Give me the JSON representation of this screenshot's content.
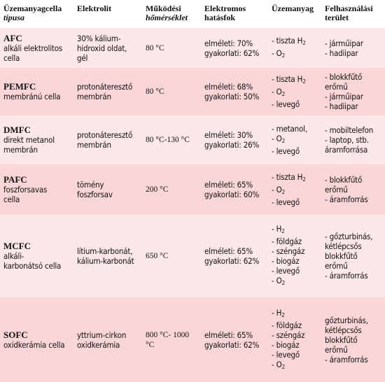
{
  "headers": {
    "type": [
      "Üzemanyagcella",
      "típusa"
    ],
    "electrolyte": [
      "Elektrolit"
    ],
    "temperature": [
      "Működési",
      "hőmérséklet"
    ],
    "efficiency": [
      "Elektromos",
      "hatásfok"
    ],
    "fuel": [
      "Üzemanyag"
    ],
    "application": [
      "Felhasználási",
      "terület"
    ]
  },
  "rows": [
    {
      "name": "AFC",
      "subtitle": [
        "alkáli elektrolitos",
        "cella"
      ],
      "electrolyte": [
        "30% kálium-",
        "hidroxid oldat,",
        "gél"
      ],
      "temperature": [
        "80 °C"
      ],
      "efficiency": [
        "elméleti: 70%",
        "gyakorlati: 62%"
      ],
      "fuel": [
        "- tiszta H2",
        "- O2"
      ],
      "application": [
        "- járműipar",
        "- hadiipar"
      ]
    },
    {
      "name": "PEMFC",
      "subtitle": [
        "membránú cella"
      ],
      "electrolyte": [
        "protonáteresztő",
        "membrán"
      ],
      "temperature": [
        "80 °C"
      ],
      "efficiency": [
        "elméleti: 68%",
        "gyakorlati: 50%"
      ],
      "fuel": [
        "- tiszta H2",
        "- O2",
        "- levegő"
      ],
      "application": [
        "- blokkfűtő",
        "  erőmű",
        "- járműipar",
        "- hadiipar"
      ]
    },
    {
      "name": "DMFC",
      "subtitle": [
        "direkt metanol",
        "membrán"
      ],
      "electrolyte": [
        "protonáteresztő",
        "membrán"
      ],
      "temperature": [
        "80 °C-130 °C"
      ],
      "efficiency": [
        "elméleti: 30%",
        "gyakorlati: 26%"
      ],
      "fuel": [
        "- metanol,",
        "- O2",
        "- levegő"
      ],
      "application": [
        "- mobiltelefon",
        "- laptop, stb.",
        "  áramforrása"
      ]
    },
    {
      "name": "PAFC",
      "subtitle": [
        "foszforsavas",
        "cella"
      ],
      "electrolyte": [
        "tömény",
        "foszforsav"
      ],
      "temperature": [
        "200 °C"
      ],
      "efficiency": [
        "elméleti: 65%",
        "gyakorlati: 60%"
      ],
      "fuel": [
        "- tiszta H2",
        "- O2",
        "- levegő"
      ],
      "application": [
        "- blokkfűtő",
        "  erőmű",
        "- áramforrás"
      ]
    },
    {
      "name": "MCFC",
      "subtitle": [
        "alkáli-",
        "karbonátsó cella"
      ],
      "electrolyte": [
        "lítium-karbonát,",
        "kálium-karbonát"
      ],
      "temperature": [
        "650 °C"
      ],
      "efficiency": [
        "elméleti: 65%",
        "gyakorlati: 62%"
      ],
      "fuel": [
        "- H2",
        "- földgáz",
        "- széngáz",
        "- biogáz",
        "- levegő",
        "- O2"
      ],
      "application": [
        "- gőzturbinás,",
        "  kétlépcsős",
        "  blokkfűtő",
        "  erőmű",
        "- áramforrás"
      ]
    },
    {
      "name": "SOFC",
      "subtitle": [
        "oxidkerámia cella"
      ],
      "electrolyte": [
        "yttrium-cirkon",
        "oxidkerámia"
      ],
      "temperature": [
        "800 °C- 1000",
        "°C"
      ],
      "efficiency": [
        "elméleti: 65%",
        "gyakorlati: 62%"
      ],
      "fuel": [
        "- H2",
        "- földgáz",
        "- széngáz",
        "- biogáz",
        "- levegő",
        "- O2"
      ],
      "application": [
        "gőzturbinás,",
        "kétlépcsős",
        "blokkfűtő",
        "erőmű",
        "- áramforrás"
      ]
    }
  ]
}
